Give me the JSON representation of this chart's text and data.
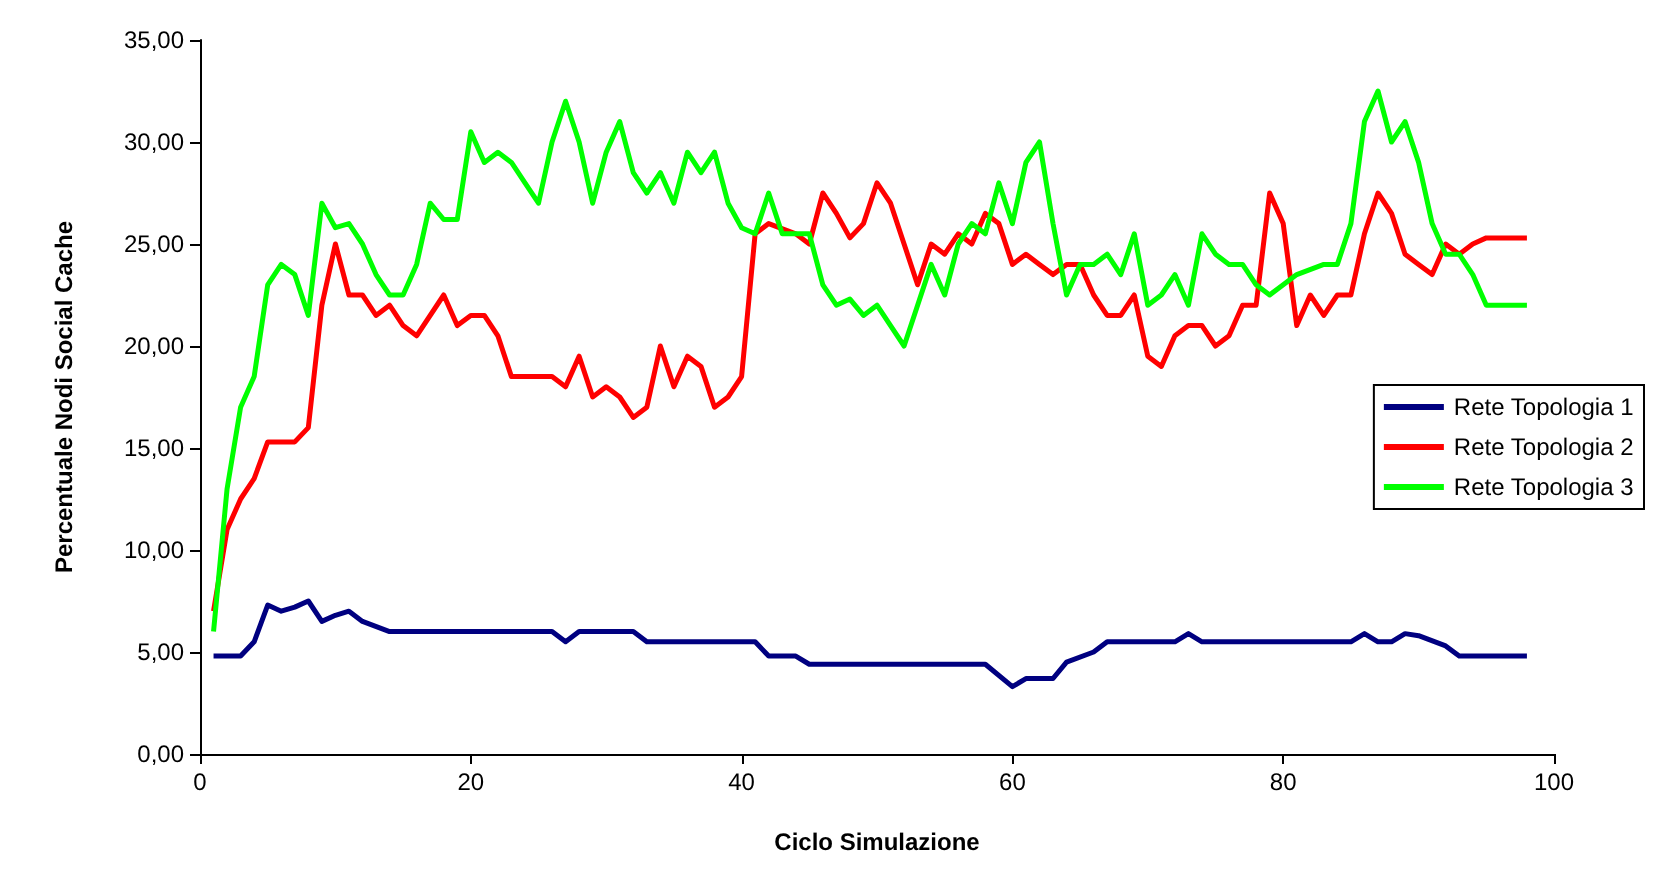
{
  "chart_data": {
    "type": "line",
    "xlabel": "Ciclo Simulazione",
    "ylabel": "Percentuale Nodi Social Cache",
    "xlim": [
      0,
      100
    ],
    "xticks": [
      0,
      20,
      40,
      60,
      80,
      100
    ],
    "ylim": [
      0,
      35
    ],
    "yticks": [
      {
        "value": 0,
        "label": "0,00"
      },
      {
        "value": 5,
        "label": "5,00"
      },
      {
        "value": 10,
        "label": "10,00"
      },
      {
        "value": 15,
        "label": "15,00"
      },
      {
        "value": 20,
        "label": "20,00"
      },
      {
        "value": 25,
        "label": "25,00"
      },
      {
        "value": 30,
        "label": "30,00"
      },
      {
        "value": 35,
        "label": "35,00"
      }
    ],
    "grid": false,
    "legend": "right",
    "marker": "none",
    "line_style": "solid",
    "series": [
      {
        "name": "Rete Topologia 1",
        "color": "#000080",
        "x": [
          1,
          3,
          4,
          5,
          6,
          7,
          8,
          9,
          10,
          11,
          12,
          14,
          26,
          27,
          28,
          32,
          33,
          41,
          42,
          44,
          45,
          58,
          60,
          61,
          63,
          64,
          66,
          67,
          72,
          73,
          74,
          85,
          86,
          87,
          88,
          89,
          90,
          92,
          93,
          98
        ],
        "values": [
          4.8,
          4.8,
          5.5,
          7.3,
          7.0,
          7.2,
          7.5,
          6.5,
          6.8,
          7.0,
          6.5,
          6.0,
          6.0,
          5.5,
          6.0,
          6.0,
          5.5,
          5.5,
          4.8,
          4.8,
          4.4,
          4.4,
          3.3,
          3.7,
          3.7,
          4.5,
          5.0,
          5.5,
          5.5,
          5.9,
          5.5,
          5.5,
          5.9,
          5.5,
          5.5,
          5.9,
          5.8,
          5.3,
          4.8,
          4.8
        ]
      },
      {
        "name": "Rete Topologia 2",
        "color": "#ff0000",
        "x": [
          1,
          2,
          3,
          4,
          5,
          7,
          8,
          9,
          10,
          11,
          12,
          13,
          14,
          15,
          16,
          18,
          19,
          20,
          21,
          22,
          23,
          26,
          27,
          28,
          29,
          30,
          31,
          32,
          33,
          34,
          35,
          36,
          37,
          38,
          39,
          40,
          41,
          42,
          44,
          45,
          46,
          47,
          48,
          49,
          50,
          51,
          52,
          53,
          54,
          55,
          56,
          57,
          58,
          59,
          60,
          61,
          62,
          63,
          64,
          65,
          66,
          67,
          68,
          69,
          70,
          71,
          72,
          73,
          74,
          75,
          76,
          77,
          78,
          79,
          80,
          81,
          82,
          83,
          84,
          85,
          86,
          87,
          88,
          89,
          90,
          91,
          92,
          93,
          94,
          95,
          98
        ],
        "values": [
          7,
          11,
          12.5,
          13.5,
          15.3,
          15.3,
          16,
          22,
          25,
          22.5,
          22.5,
          21.5,
          22,
          21,
          20.5,
          22.5,
          21,
          21.5,
          21.5,
          20.5,
          18.5,
          18.5,
          18,
          19.5,
          17.5,
          18,
          17.5,
          16.5,
          17,
          20,
          18,
          19.5,
          19,
          17,
          17.5,
          18.5,
          25.5,
          26,
          25.5,
          25,
          27.5,
          26.5,
          25.3,
          26,
          28,
          27,
          25,
          23,
          25,
          24.5,
          25.5,
          25,
          26.5,
          26,
          24,
          24.5,
          24,
          23.5,
          24,
          24,
          22.5,
          21.5,
          21.5,
          22.5,
          19.5,
          19,
          20.5,
          21,
          21,
          20,
          20.5,
          22,
          22,
          27.5,
          26,
          21,
          22.5,
          21.5,
          22.5,
          22.5,
          25.5,
          27.5,
          26.5,
          24.5,
          24,
          23.5,
          25,
          24.5,
          25,
          25.3,
          25.3
        ]
      },
      {
        "name": "Rete Topologia 3",
        "color": "#00ff00",
        "x": [
          1,
          2,
          3,
          4,
          5,
          6,
          7,
          8,
          9,
          10,
          11,
          12,
          13,
          14,
          15,
          16,
          17,
          18,
          19,
          20,
          21,
          22,
          23,
          24,
          25,
          26,
          27,
          28,
          29,
          30,
          31,
          32,
          33,
          34,
          35,
          36,
          37,
          38,
          39,
          40,
          41,
          42,
          43,
          44,
          45,
          46,
          47,
          48,
          49,
          50,
          51,
          52,
          53,
          54,
          55,
          56,
          57,
          58,
          59,
          60,
          61,
          62,
          63,
          64,
          65,
          66,
          67,
          68,
          69,
          70,
          71,
          72,
          73,
          74,
          75,
          76,
          77,
          78,
          79,
          80,
          81,
          83,
          84,
          85,
          86,
          87,
          88,
          89,
          90,
          91,
          92,
          93,
          94,
          95,
          98
        ],
        "values": [
          6,
          13,
          17,
          18.5,
          23,
          24,
          23.5,
          21.5,
          27,
          25.8,
          26,
          25,
          23.5,
          22.5,
          22.5,
          24,
          27,
          26.2,
          26.2,
          30.5,
          29,
          29.5,
          29,
          28,
          27,
          30,
          32,
          30,
          27,
          29.5,
          31,
          28.5,
          27.5,
          28.5,
          27,
          29.5,
          28.5,
          29.5,
          27,
          25.8,
          25.5,
          27.5,
          25.5,
          25.5,
          25.5,
          23,
          22,
          22.3,
          21.5,
          22,
          21,
          20,
          22,
          24,
          22.5,
          25,
          26,
          25.5,
          28,
          26,
          29,
          30,
          26,
          22.5,
          24,
          24,
          24.5,
          23.5,
          25.5,
          22,
          22.5,
          23.5,
          22,
          25.5,
          24.5,
          24,
          24,
          23,
          22.5,
          23,
          23.5,
          24,
          24,
          26,
          31,
          32.5,
          30,
          31,
          29,
          26,
          24.5,
          24.5,
          23.5,
          22,
          22
        ]
      }
    ]
  }
}
